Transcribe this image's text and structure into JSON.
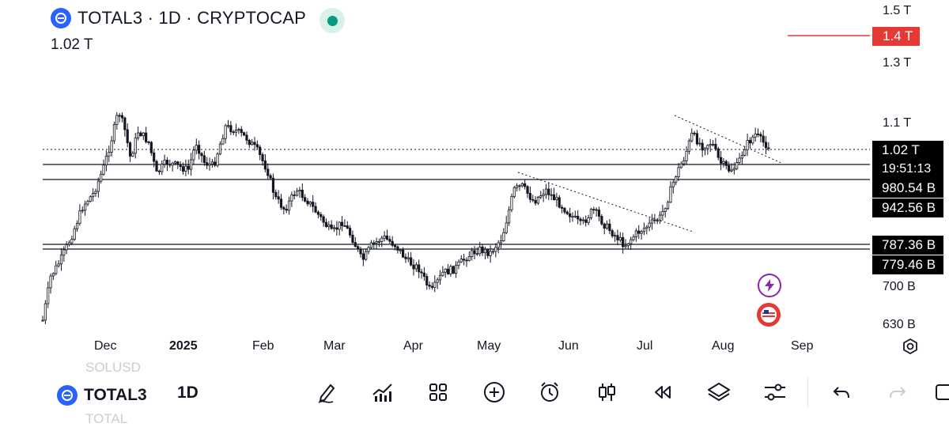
{
  "header": {
    "symbol_line": "TOTAL3 · 1D · CRYPTOCAP",
    "current_value": "1.02 T"
  },
  "price_axis": {
    "ticks": [
      "1.5 T",
      "1.3 T",
      "1.1 T",
      "700 B",
      "630 B"
    ],
    "alert_label": "1.4 T",
    "last_price_label": "1.02 T",
    "countdown": "19:51:13",
    "level_labels": [
      "980.54 B",
      "942.56 B",
      "787.36 B",
      "779.46 B"
    ]
  },
  "time_axis": {
    "labels": [
      "Dec",
      "2025",
      "Feb",
      "Mar",
      "Apr",
      "May",
      "Jun",
      "Jul",
      "Aug",
      "Sep"
    ]
  },
  "bottom_bar": {
    "symbol": "TOTAL3",
    "interval": "1D",
    "ghost_above": "SOLUSD",
    "ghost_below": "TOTAL"
  },
  "colors": {
    "alert_red": "#e53935",
    "ink": "#131722",
    "live_green": "#089981",
    "purple": "#8e24aa"
  },
  "icons": {
    "toolbar": [
      "pencil-icon",
      "indicators-icon",
      "layouts-icon",
      "add-icon",
      "alert-clock-icon",
      "candles-icon",
      "replay-icon",
      "layers-icon",
      "settings-sliders-icon",
      "undo-icon",
      "redo-icon"
    ]
  }
}
